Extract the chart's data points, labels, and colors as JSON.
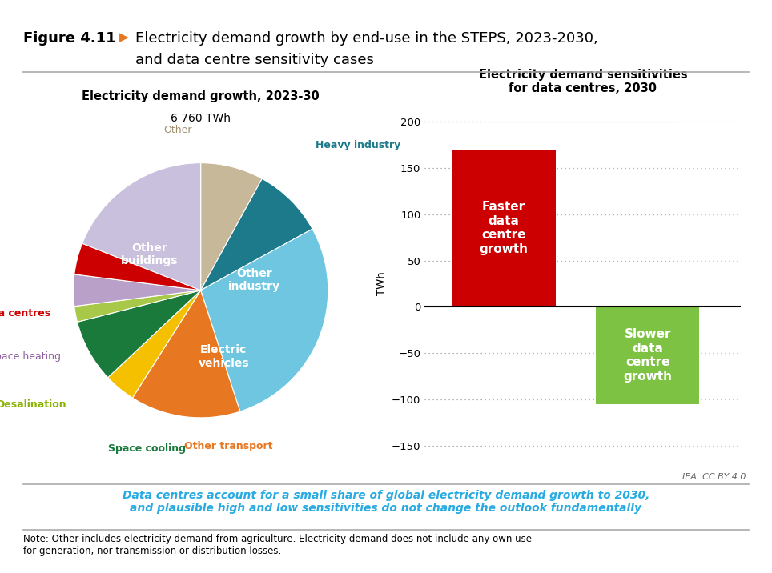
{
  "figure_title_bold": "Figure 4.11",
  "figure_title_arrow": "▶",
  "pie_title_line1": "Electricity demand growth, 2023-30",
  "pie_subtitle": "6 760 TWh",
  "pie_slices": [
    {
      "label": "Other",
      "value": 8,
      "color": "#C8B89A",
      "label_color": "#A09070",
      "inside": false,
      "bold": false
    },
    {
      "label": "Heavy industry",
      "value": 9,
      "color": "#1C7A8A",
      "label_color": "#1C7A8A",
      "inside": false,
      "bold": true
    },
    {
      "label": "Other\nindustry",
      "value": 28,
      "color": "#6EC6E0",
      "label_color": "white",
      "inside": true,
      "bold": true
    },
    {
      "label": "Electric\nvehicles",
      "value": 14,
      "color": "#E87722",
      "label_color": "white",
      "inside": true,
      "bold": true
    },
    {
      "label": "Other transport",
      "value": 4,
      "color": "#F5C000",
      "label_color": "#E87722",
      "inside": false,
      "bold": true
    },
    {
      "label": "Space cooling",
      "value": 8,
      "color": "#1A7A3C",
      "label_color": "#1A7A3C",
      "inside": false,
      "bold": true
    },
    {
      "label": "Desalination",
      "value": 2,
      "color": "#A8C84A",
      "label_color": "#8AB200",
      "inside": false,
      "bold": true
    },
    {
      "label": "Space heating",
      "value": 4,
      "color": "#B8A0C8",
      "label_color": "#9060A0",
      "inside": false,
      "bold": false
    },
    {
      "label": "Data centres",
      "value": 4,
      "color": "#CC0000",
      "label_color": "#CC0000",
      "inside": false,
      "bold": true
    },
    {
      "label": "Other\nbuildings",
      "value": 19,
      "color": "#C8C0DC",
      "label_color": "white",
      "inside": true,
      "bold": true
    }
  ],
  "bar_title_line1": "Electricity demand sensitivities",
  "bar_title_line2": "for data centres, 2030",
  "bar_ylabel": "TWh",
  "bar_faster_value": 170,
  "bar_slower_value": -105,
  "bar_faster_color": "#CC0000",
  "bar_slower_color": "#7DC242",
  "bar_faster_label": "Faster\ndata\ncentre\ngrowth",
  "bar_slower_label": "Slower\ndata\ncentre\ngrowth",
  "bar_ylim": [
    -170,
    220
  ],
  "bar_yticks": [
    -150,
    -100,
    -50,
    0,
    50,
    100,
    150,
    200
  ],
  "insight_text": "Data centres account for a small share of global electricity demand growth to 2030,\nand plausible high and low sensitivities do not change the outlook fundamentally",
  "note_text": "Note: Other includes electricity demand from agriculture. Electricity demand does not include any own use\nfor generation, nor transmission or distribution losses.",
  "iea_credit": "IEA. CC BY 4.0.",
  "bg_color": "#FFFFFF",
  "insight_color": "#29ABE2",
  "divider_color": "#AAAAAA"
}
